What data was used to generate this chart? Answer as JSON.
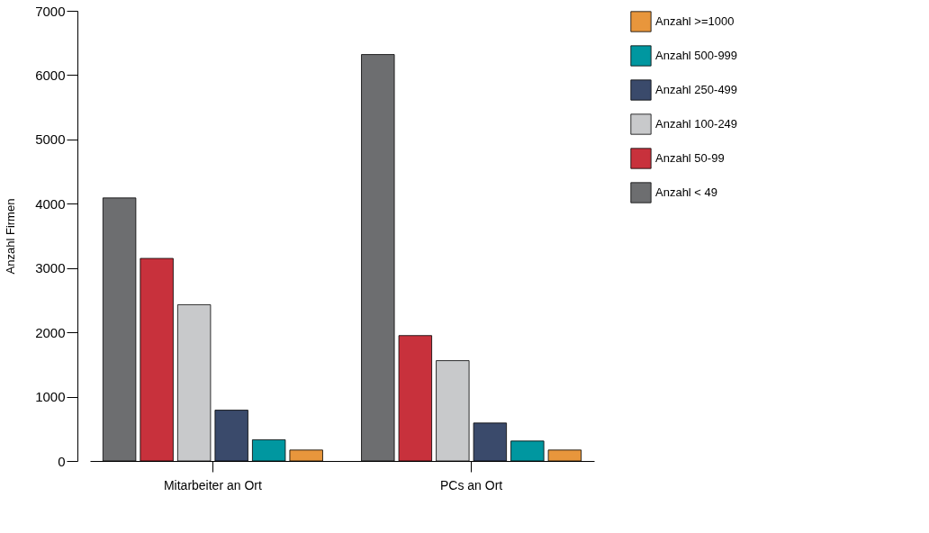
{
  "chart_data": {
    "type": "bar",
    "ylabel": "Anzahl Firmen",
    "categories": [
      "Mitarbeiter an Ort",
      "PCs an Ort"
    ],
    "series": [
      {
        "name": "Anzahl < 49",
        "color": "#6d6e70",
        "values": [
          4090,
          6320
        ]
      },
      {
        "name": "Anzahl 50-99",
        "color": "#c8313c",
        "values": [
          3150,
          1950
        ]
      },
      {
        "name": "Anzahl 100-249",
        "color": "#c8c9cb",
        "values": [
          2430,
          1560
        ]
      },
      {
        "name": "Anzahl 250-499",
        "color": "#3a4a6b",
        "values": [
          790,
          590
        ]
      },
      {
        "name": "Anzahl 500-999",
        "color": "#0097a0",
        "values": [
          330,
          310
        ]
      },
      {
        "name": "Anzahl >=1000",
        "color": "#e8963c",
        "values": [
          170,
          170
        ]
      }
    ],
    "ylim": [
      0,
      7000
    ],
    "yticks": [
      0,
      1000,
      2000,
      3000,
      4000,
      5000,
      6000,
      7000
    ],
    "grid": false,
    "legend": "right"
  }
}
